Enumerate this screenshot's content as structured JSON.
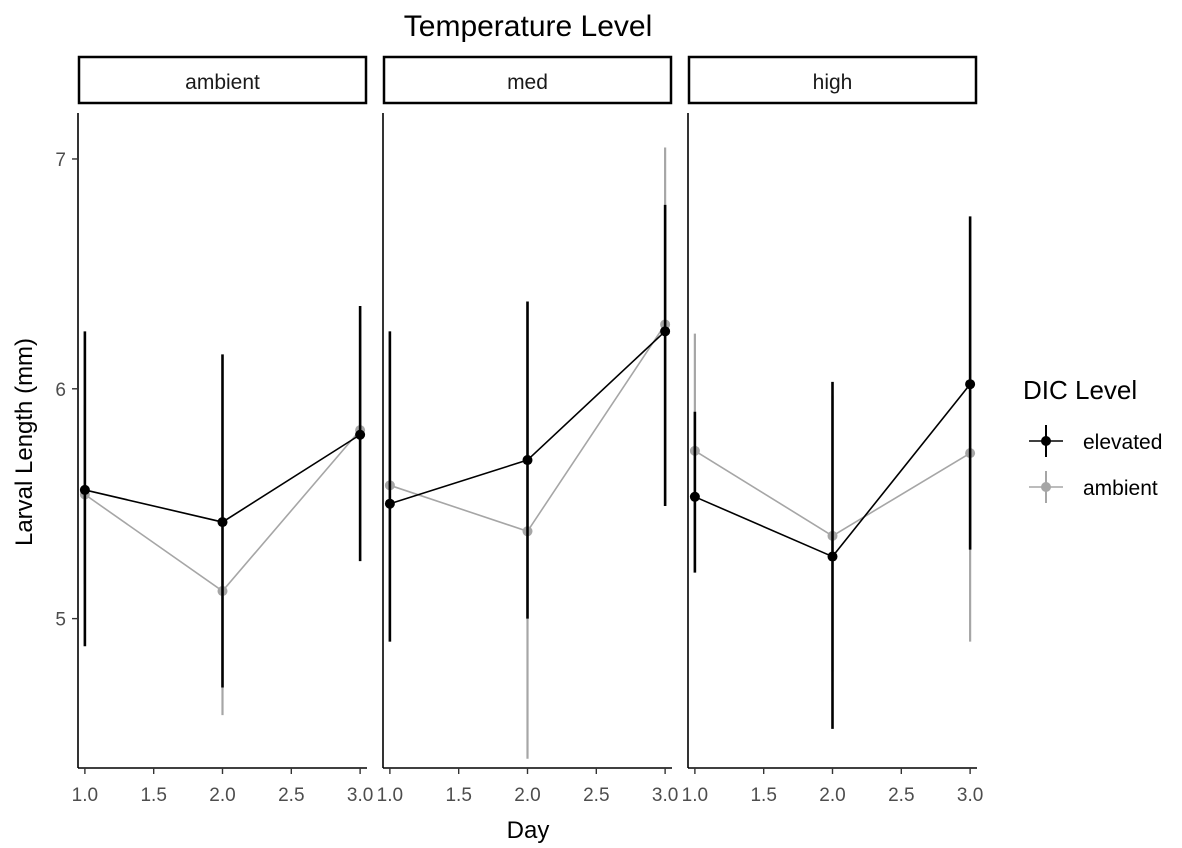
{
  "chart_data": {
    "type": "line",
    "title": "Temperature Level",
    "xlabel": "Day",
    "ylabel": "Larval Length (mm)",
    "facets": [
      "ambient",
      "med",
      "high"
    ],
    "x_ticks": [
      "1.0",
      "1.5",
      "2.0",
      "2.5",
      "3.0"
    ],
    "y_ticks": [
      "5",
      "6",
      "7"
    ],
    "xlim": [
      0.95,
      3.05
    ],
    "ylim": [
      4.35,
      7.2
    ],
    "legend": {
      "title": "DIC Level",
      "position": "right",
      "entries": [
        "elevated",
        "ambient"
      ]
    },
    "series": [
      {
        "name": "elevated",
        "color": "#000000",
        "panels": [
          {
            "facet": "ambient",
            "x": [
              1,
              2,
              3
            ],
            "y": [
              5.56,
              5.42,
              5.8
            ],
            "ymin": [
              4.88,
              4.7,
              5.25
            ],
            "ymax": [
              6.25,
              6.15,
              6.36
            ]
          },
          {
            "facet": "med",
            "x": [
              1,
              2,
              3
            ],
            "y": [
              5.5,
              5.69,
              6.25
            ],
            "ymin": [
              4.9,
              5.0,
              5.49
            ],
            "ymax": [
              6.25,
              6.38,
              6.8
            ]
          },
          {
            "facet": "high",
            "x": [
              1,
              2,
              3
            ],
            "y": [
              5.53,
              5.27,
              6.02
            ],
            "ymin": [
              5.2,
              4.52,
              5.3
            ],
            "ymax": [
              5.9,
              6.03,
              6.75
            ]
          }
        ]
      },
      {
        "name": "ambient",
        "color": "#a6a6a6",
        "panels": [
          {
            "facet": "ambient",
            "x": [
              1,
              2,
              3
            ],
            "y": [
              5.54,
              5.12,
              5.82
            ],
            "ymin": [
              5.15,
              4.58,
              5.36
            ],
            "ymax": [
              5.93,
              5.65,
              6.28
            ]
          },
          {
            "facet": "med",
            "x": [
              1,
              2,
              3
            ],
            "y": [
              5.58,
              5.38,
              6.28
            ],
            "ymin": [
              4.9,
              4.39,
              5.5
            ],
            "ymax": [
              6.25,
              6.38,
              7.05
            ]
          },
          {
            "facet": "high",
            "x": [
              1,
              2,
              3
            ],
            "y": [
              5.73,
              5.36,
              5.72
            ],
            "ymin": [
              5.21,
              4.77,
              4.9
            ],
            "ymax": [
              6.24,
              5.97,
              6.55
            ]
          }
        ]
      }
    ]
  }
}
